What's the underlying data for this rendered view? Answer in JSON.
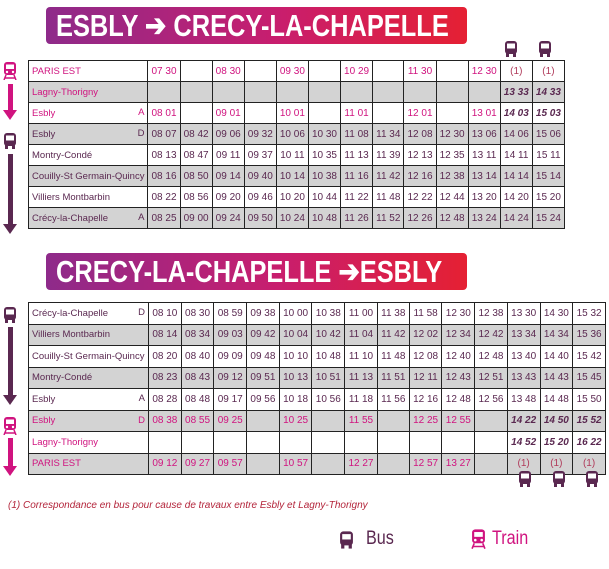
{
  "colors": {
    "train": "#d0137f",
    "bus": "#5a2850",
    "shade": "#d3d3d3",
    "footnote": "#b3243a"
  },
  "outbound": {
    "title": "ESBLY ➔ CRECY-LA-CHAPELLE",
    "bus_connection_columns": [
      11,
      12
    ],
    "header_icons": [
      "bus-icon",
      "bus-icon"
    ],
    "rows": [
      {
        "station": "PARIS EST",
        "flag": "",
        "mode": "train",
        "cells": [
          "07 30",
          "",
          "08 30",
          "",
          "09 30",
          "",
          "10 29",
          "",
          "11 30",
          "",
          "12 30",
          "(1)",
          "(1)"
        ]
      },
      {
        "station": "Lagny-Thorigny",
        "flag": "",
        "mode": "train",
        "cells": [
          "",
          "",
          "",
          "",
          "",
          "",
          "",
          "",
          "",
          "",
          "",
          "13 33",
          "14 33"
        ]
      },
      {
        "station": "Esbly",
        "flag": "A",
        "mode": "train",
        "cells": [
          "08 01",
          "",
          "09 01",
          "",
          "10 01",
          "",
          "11 01",
          "",
          "12 01",
          "",
          "13 01",
          "14 03",
          "15 03"
        ]
      },
      {
        "station": "Esbly",
        "flag": "D",
        "mode": "bus",
        "cells": [
          "08 07",
          "08 42",
          "09 06",
          "09 32",
          "10 06",
          "10 30",
          "11 08",
          "11 34",
          "12 08",
          "12 30",
          "13 06",
          "14 06",
          "15 06"
        ]
      },
      {
        "station": "Montry-Condé",
        "flag": "",
        "mode": "bus",
        "cells": [
          "08 13",
          "08 47",
          "09 11",
          "09 37",
          "10 11",
          "10 35",
          "11 13",
          "11 39",
          "12 13",
          "12 35",
          "13 11",
          "14 11",
          "15 11"
        ]
      },
      {
        "station": "Couilly-St Germain-Quincy",
        "flag": "",
        "mode": "bus",
        "cells": [
          "08 16",
          "08 50",
          "09 14",
          "09 40",
          "10 14",
          "10 38",
          "11 16",
          "11 42",
          "12 16",
          "12 38",
          "13 14",
          "14 14",
          "15 14"
        ]
      },
      {
        "station": "Villiers Montbarbin",
        "flag": "",
        "mode": "bus",
        "cells": [
          "08 22",
          "08 56",
          "09 20",
          "09 46",
          "10 20",
          "10 44",
          "11 22",
          "11 48",
          "12 22",
          "12 44",
          "13 20",
          "14 20",
          "15 20"
        ]
      },
      {
        "station": "Crécy-la-Chapelle",
        "flag": "A",
        "mode": "bus",
        "cells": [
          "08 25",
          "09 00",
          "09 24",
          "09 50",
          "10 24",
          "10 48",
          "11 26",
          "11 52",
          "12 26",
          "12 48",
          "13 24",
          "14 24",
          "15 24"
        ]
      }
    ]
  },
  "inbound": {
    "title": "CRECY-LA-CHAPELLE ➔ESBLY",
    "bus_connection_columns": [
      11,
      12,
      13
    ],
    "footer_icons": [
      "bus-icon",
      "bus-icon",
      "bus-icon"
    ],
    "rows": [
      {
        "station": "Crécy-la-Chapelle",
        "flag": "D",
        "mode": "bus",
        "cells": [
          "08 10",
          "08 30",
          "08 59",
          "09 38",
          "10 00",
          "10 38",
          "11 00",
          "11 38",
          "11 58",
          "12 30",
          "12 38",
          "13 30",
          "14 30",
          "15 32"
        ]
      },
      {
        "station": "Villiers Montbarbin",
        "flag": "",
        "mode": "bus",
        "cells": [
          "08 14",
          "08 34",
          "09 03",
          "09 42",
          "10 04",
          "10 42",
          "11 04",
          "11 42",
          "12 02",
          "12 34",
          "12 42",
          "13 34",
          "14 34",
          "15 36"
        ]
      },
      {
        "station": "Couilly-St Germain-Quincy",
        "flag": "",
        "mode": "bus",
        "cells": [
          "08 20",
          "08 40",
          "09 09",
          "09 48",
          "10 10",
          "10 48",
          "11 10",
          "11 48",
          "12 08",
          "12 40",
          "12 48",
          "13 40",
          "14 40",
          "15 42"
        ]
      },
      {
        "station": "Montry-Condé",
        "flag": "",
        "mode": "bus",
        "cells": [
          "08 23",
          "08 43",
          "09 12",
          "09 51",
          "10 13",
          "10 51",
          "11 13",
          "11 51",
          "12 11",
          "12 43",
          "12 51",
          "13 43",
          "14 43",
          "15 45"
        ]
      },
      {
        "station": "Esbly",
        "flag": "A",
        "mode": "bus",
        "cells": [
          "08 28",
          "08 48",
          "09 17",
          "09 56",
          "10 18",
          "10 56",
          "11 18",
          "11 56",
          "12 16",
          "12 48",
          "12 56",
          "13 48",
          "14 48",
          "15 50"
        ]
      },
      {
        "station": "Esbly",
        "flag": "D",
        "mode": "train",
        "cells": [
          "08 38",
          "08 55",
          "09 25",
          "",
          "10 25",
          "",
          "11 55",
          "",
          "12 25",
          "12 55",
          "",
          "14 22",
          "14 50",
          "15 52"
        ]
      },
      {
        "station": "Lagny-Thorigny",
        "flag": "",
        "mode": "train",
        "cells": [
          "",
          "",
          "",
          "",
          "",
          "",
          "",
          "",
          "",
          "",
          "",
          "14 52",
          "15 20",
          "16 22"
        ]
      },
      {
        "station": "PARIS EST",
        "flag": "",
        "mode": "train",
        "cells": [
          "09 12",
          "09 27",
          "09 57",
          "",
          "10 57",
          "",
          "12 27",
          "",
          "12 57",
          "13 27",
          "",
          "(1)",
          "(1)",
          "(1)"
        ]
      }
    ]
  },
  "footnote": "(1) Correspondance en bus pour cause de travaux entre Esbly et Lagny-Thorigny",
  "legend": {
    "bus": "Bus",
    "train": "Train"
  }
}
